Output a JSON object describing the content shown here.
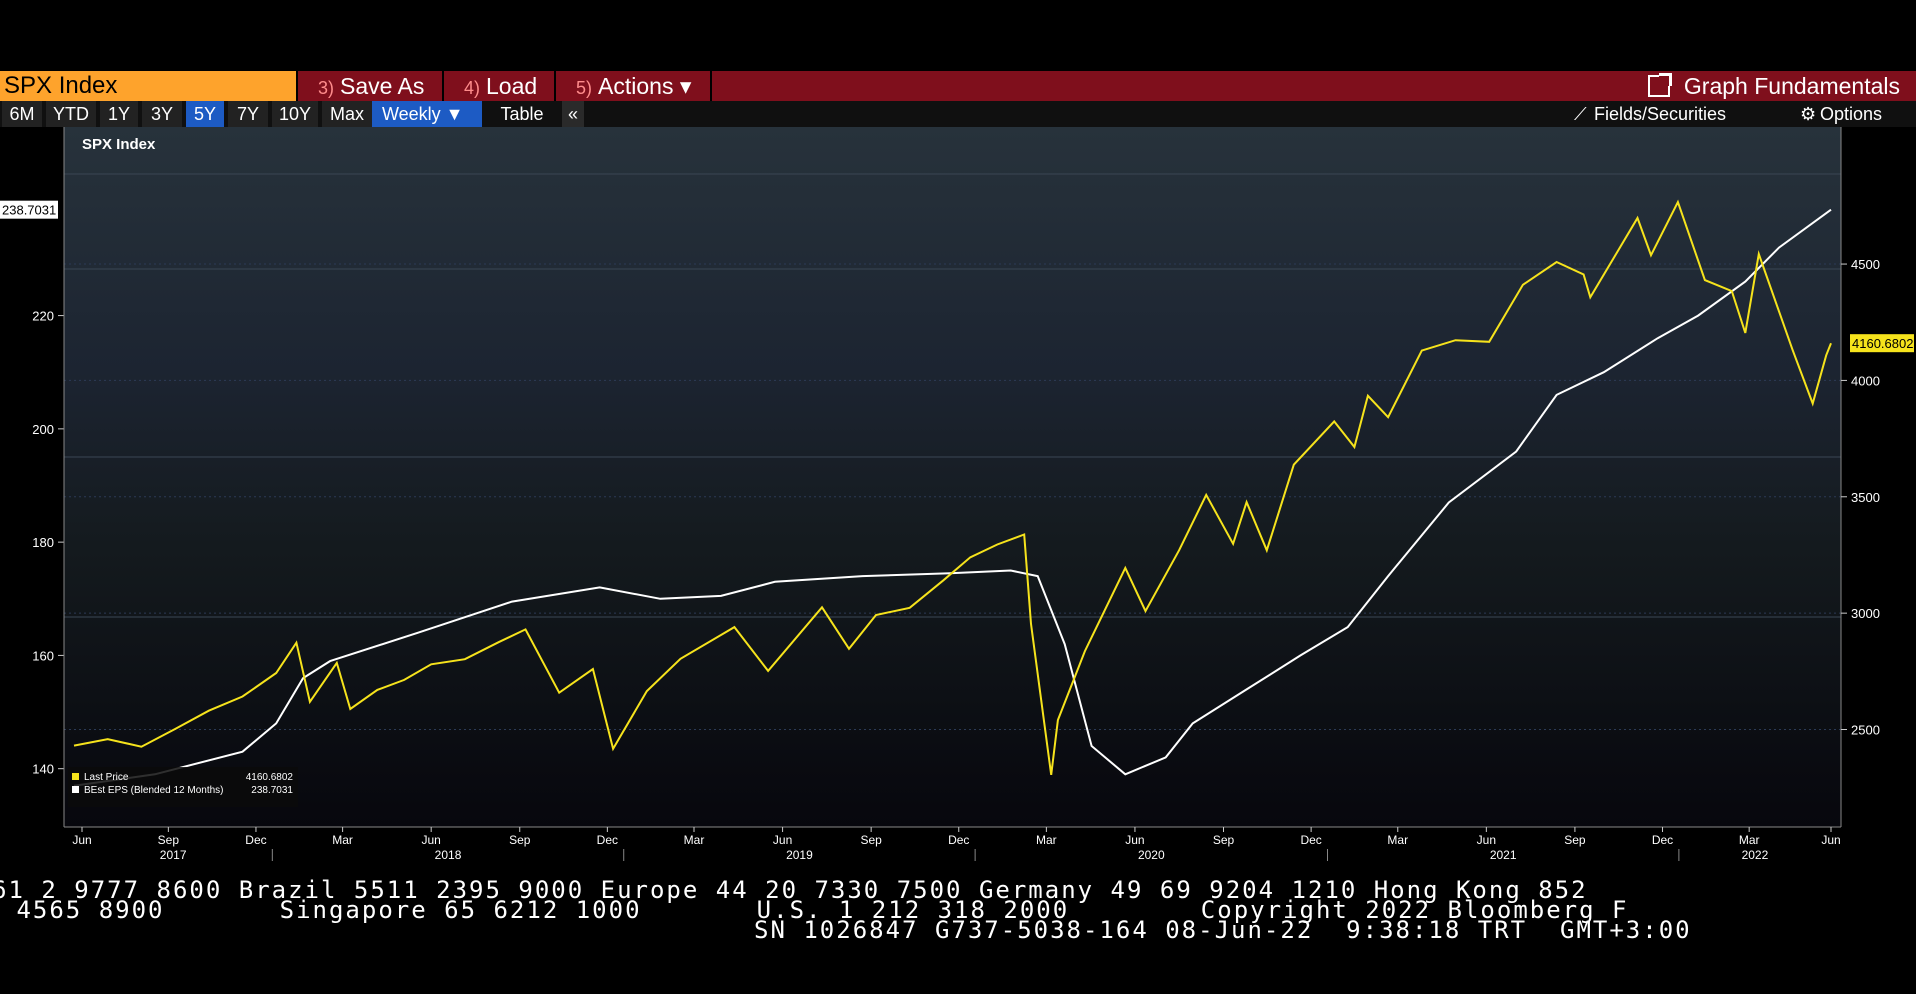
{
  "toolbar": {
    "ticker": "SPX Index",
    "save_num": "3)",
    "save_label": "Save As",
    "load_num": "4)",
    "load_label": "Load",
    "actions_num": "5)",
    "actions_label": "Actions ▾",
    "graph_fundamentals": "Graph Fundamentals"
  },
  "range_bar": {
    "buttons": [
      "6M",
      "YTD",
      "1Y",
      "3Y",
      "5Y",
      "7Y",
      "10Y",
      "Max"
    ],
    "selected": "5Y",
    "frequency": "Weekly ▼",
    "table": "Table",
    "collapse": "«",
    "fields": "Fields/Securities",
    "options": "Options"
  },
  "chart_data": {
    "type": "line",
    "title": "SPX Index",
    "x_range": [
      "2017-06-09",
      "2022-06-08"
    ],
    "x_tick_months": [
      "Jun",
      "Sep",
      "Dec",
      "Mar",
      "Jun",
      "Sep",
      "Dec",
      "Mar",
      "Jun",
      "Sep",
      "Dec",
      "Mar",
      "Jun",
      "Sep",
      "Dec",
      "Mar",
      "Jun",
      "Sep",
      "Dec",
      "Mar",
      "Jun"
    ],
    "x_tick_years": [
      "2017",
      "2018",
      "2019",
      "2020",
      "2021",
      "2022"
    ],
    "left_axis": {
      "ticks": [
        140,
        160,
        180,
        200,
        220
      ],
      "range": [
        135,
        248
      ]
    },
    "right_axis": {
      "ticks": [
        2500,
        3000,
        3500,
        4000,
        4500
      ],
      "range": [
        2210,
        4960
      ]
    },
    "last_values": {
      "left": "238.7031",
      "right": "4160.6802"
    },
    "legend": {
      "position": "bottom-left",
      "entries": [
        {
          "label": "Last Price",
          "value": "4160.6802",
          "color": "#f6e31c"
        },
        {
          "label": "BEst EPS (Blended 12 Months)",
          "value": "238.7031",
          "color": "#ffffff"
        }
      ]
    },
    "series": [
      {
        "name": "Last Price",
        "axis": "right",
        "color": "#f6e31c",
        "points": [
          [
            "2017-06-09",
            2431
          ],
          [
            "2017-07-14",
            2459
          ],
          [
            "2017-08-18",
            2426
          ],
          [
            "2017-09-22",
            2502
          ],
          [
            "2017-10-27",
            2581
          ],
          [
            "2017-12-01",
            2642
          ],
          [
            "2018-01-05",
            2743
          ],
          [
            "2018-01-26",
            2873
          ],
          [
            "2018-02-09",
            2619
          ],
          [
            "2018-03-09",
            2786
          ],
          [
            "2018-03-23",
            2588
          ],
          [
            "2018-04-20",
            2670
          ],
          [
            "2018-05-18",
            2713
          ],
          [
            "2018-06-15",
            2780
          ],
          [
            "2018-07-20",
            2802
          ],
          [
            "2018-08-24",
            2875
          ],
          [
            "2018-09-21",
            2930
          ],
          [
            "2018-10-26",
            2658
          ],
          [
            "2018-11-30",
            2760
          ],
          [
            "2018-12-21",
            2417
          ],
          [
            "2019-01-25",
            2665
          ],
          [
            "2019-03-01",
            2804
          ],
          [
            "2019-04-26",
            2940
          ],
          [
            "2019-05-31",
            2752
          ],
          [
            "2019-07-26",
            3025
          ],
          [
            "2019-08-23",
            2847
          ],
          [
            "2019-09-20",
            2992
          ],
          [
            "2019-10-25",
            3023
          ],
          [
            "2019-11-29",
            3141
          ],
          [
            "2019-12-27",
            3240
          ],
          [
            "2020-01-24",
            3295
          ],
          [
            "2020-02-21",
            3338
          ],
          [
            "2020-02-28",
            2954
          ],
          [
            "2020-03-20",
            2305
          ],
          [
            "2020-03-27",
            2541
          ],
          [
            "2020-04-24",
            2837
          ],
          [
            "2020-06-05",
            3194
          ],
          [
            "2020-06-26",
            3009
          ],
          [
            "2020-07-31",
            3271
          ],
          [
            "2020-08-28",
            3508
          ],
          [
            "2020-09-25",
            3298
          ],
          [
            "2020-10-09",
            3477
          ],
          [
            "2020-10-30",
            3270
          ],
          [
            "2020-11-27",
            3638
          ],
          [
            "2021-01-08",
            3824
          ],
          [
            "2021-01-29",
            3714
          ],
          [
            "2021-02-12",
            3934
          ],
          [
            "2021-03-05",
            3842
          ],
          [
            "2021-04-09",
            4128
          ],
          [
            "2021-05-14",
            4173
          ],
          [
            "2021-06-18",
            4166
          ],
          [
            "2021-07-23",
            4411
          ],
          [
            "2021-08-27",
            4509
          ],
          [
            "2021-09-24",
            4455
          ],
          [
            "2021-10-01",
            4357
          ],
          [
            "2021-11-19",
            4698
          ],
          [
            "2021-12-03",
            4538
          ],
          [
            "2021-12-31",
            4766
          ],
          [
            "2022-01-28",
            4431
          ],
          [
            "2022-02-25",
            4384
          ],
          [
            "2022-03-11",
            4204
          ],
          [
            "2022-03-25",
            4543
          ],
          [
            "2022-04-29",
            4132
          ],
          [
            "2022-05-20",
            3901
          ],
          [
            "2022-06-03",
            4108
          ],
          [
            "2022-06-08",
            4160
          ]
        ]
      },
      {
        "name": "BEst EPS (Blended 12 Months)",
        "axis": "left",
        "color": "#ffffff",
        "points": [
          [
            "2017-06-09",
            137
          ],
          [
            "2017-09-01",
            139
          ],
          [
            "2017-12-01",
            143
          ],
          [
            "2018-01-05",
            148
          ],
          [
            "2018-02-02",
            156
          ],
          [
            "2018-03-02",
            159
          ],
          [
            "2018-06-01",
            164
          ],
          [
            "2018-09-07",
            169.5
          ],
          [
            "2018-12-07",
            172
          ],
          [
            "2019-02-08",
            170
          ],
          [
            "2019-04-12",
            170.5
          ],
          [
            "2019-06-07",
            173
          ],
          [
            "2019-09-06",
            174
          ],
          [
            "2019-12-06",
            174.5
          ],
          [
            "2020-02-07",
            175
          ],
          [
            "2020-03-06",
            174
          ],
          [
            "2020-04-03",
            162
          ],
          [
            "2020-05-01",
            144
          ],
          [
            "2020-06-05",
            139
          ],
          [
            "2020-07-17",
            142
          ],
          [
            "2020-08-14",
            148
          ],
          [
            "2020-10-09",
            154
          ],
          [
            "2020-12-04",
            160
          ],
          [
            "2021-01-22",
            165
          ],
          [
            "2021-03-05",
            174
          ],
          [
            "2021-05-07",
            187
          ],
          [
            "2021-07-16",
            196
          ],
          [
            "2021-08-27",
            206
          ],
          [
            "2021-10-15",
            210
          ],
          [
            "2021-12-10",
            216
          ],
          [
            "2022-01-21",
            220
          ],
          [
            "2022-03-11",
            226
          ],
          [
            "2022-04-15",
            232
          ],
          [
            "2022-06-08",
            238.7
          ]
        ]
      }
    ]
  },
  "footer": {
    "line1": "61 2 9777 8600 Brazil 5511 2395 9000 Europe 44 20 7330 7500 Germany 49 69 9204 1210 Hong Kong 852",
    "line2": " 4565 8900       Singapore 65 6212 1000       U.S. 1 212 318 2000        Copyright 2022 Bloomberg F",
    "line3": "SN 1026847 G737-5038-164 08-Jun-22  9:38:18 TRT  GMT+3:00"
  }
}
